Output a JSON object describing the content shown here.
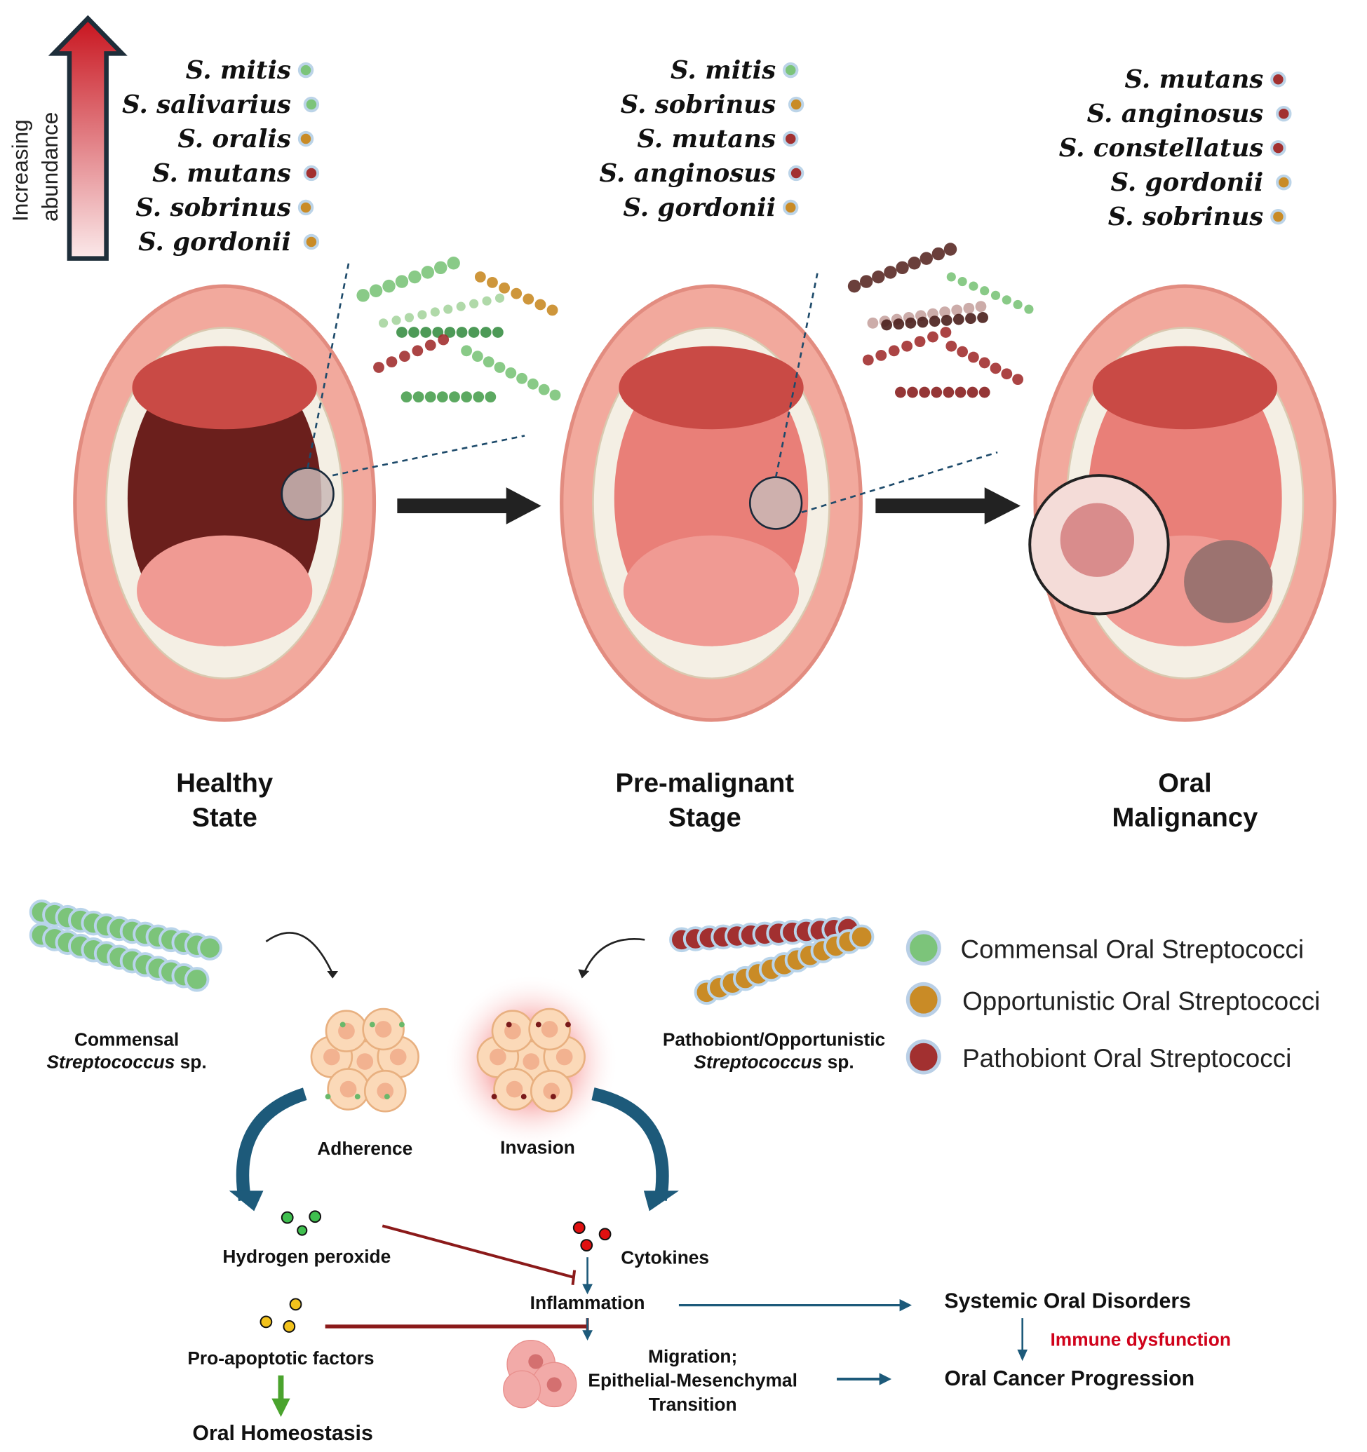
{
  "abundance_label": {
    "line1": "Increasing",
    "line2": "abundance"
  },
  "stages": [
    {
      "line1": "Healthy",
      "line2": "State",
      "species": [
        {
          "name": "S. mitis",
          "type": "commensal"
        },
        {
          "name": "S. salivarius",
          "type": "commensal"
        },
        {
          "name": "S. oralis",
          "type": "opportunistic"
        },
        {
          "name": "S. mutans",
          "type": "pathobiont"
        },
        {
          "name": "S. sobrinus",
          "type": "opportunistic"
        },
        {
          "name": "S. gordonii",
          "type": "opportunistic"
        }
      ]
    },
    {
      "line1": "Pre-malignant",
      "line2": "Stage",
      "species": [
        {
          "name": "S. mitis",
          "type": "commensal"
        },
        {
          "name": "S. sobrinus",
          "type": "opportunistic"
        },
        {
          "name": "S. mutans",
          "type": "pathobiont"
        },
        {
          "name": "S. anginosus",
          "type": "pathobiont"
        },
        {
          "name": "S. gordonii",
          "type": "opportunistic"
        }
      ]
    },
    {
      "line1": "Oral",
      "line2": "Malignancy",
      "species": [
        {
          "name": "S. mutans",
          "type": "pathobiont"
        },
        {
          "name": "S. anginosus",
          "type": "pathobiont"
        },
        {
          "name": "S. constellatus",
          "type": "pathobiont"
        },
        {
          "name": "S. gordonii",
          "type": "opportunistic"
        },
        {
          "name": "S. sobrinus",
          "type": "opportunistic"
        }
      ]
    }
  ],
  "legend": [
    {
      "label": "Commensal Oral Streptococci",
      "color": "#7cc47a"
    },
    {
      "label": "Opportunistic Oral Streptococci",
      "color": "#c98b26"
    },
    {
      "label": "Pathobiont Oral Streptococci",
      "color": "#a23030"
    }
  ],
  "colors": {
    "commensal": "#7cc47a",
    "opportunistic": "#c98b26",
    "pathobiont": "#a23030",
    "arrow_blue": "#1d5a7a",
    "inhibit_red": "#8b1a1a",
    "accent_red": "#d0021b"
  },
  "mechanism": {
    "commensal": {
      "line1": "Commensal",
      "line2_italic": "Streptococcus",
      "line2_rest": " sp."
    },
    "pathobiont": {
      "line1": "Pathobiont/Opportunistic",
      "line2_italic": "Streptococcus",
      "line2_rest": " sp."
    },
    "adherence": "Adherence",
    "invasion": "Invasion",
    "hydrogen_peroxide": "Hydrogen peroxide",
    "cytokines": "Cytokines",
    "inflammation": "Inflammation",
    "pro_apoptotic": "Pro-apoptotic factors",
    "oral_homeostasis": "Oral Homeostasis",
    "migration": {
      "line1": "Migration;",
      "line2": "Epithelial-Mesenchymal",
      "line3": "Transition"
    },
    "systemic": "Systemic Oral Disorders",
    "immune": "Immune dysfunction",
    "cancer": "Oral Cancer Progression"
  }
}
